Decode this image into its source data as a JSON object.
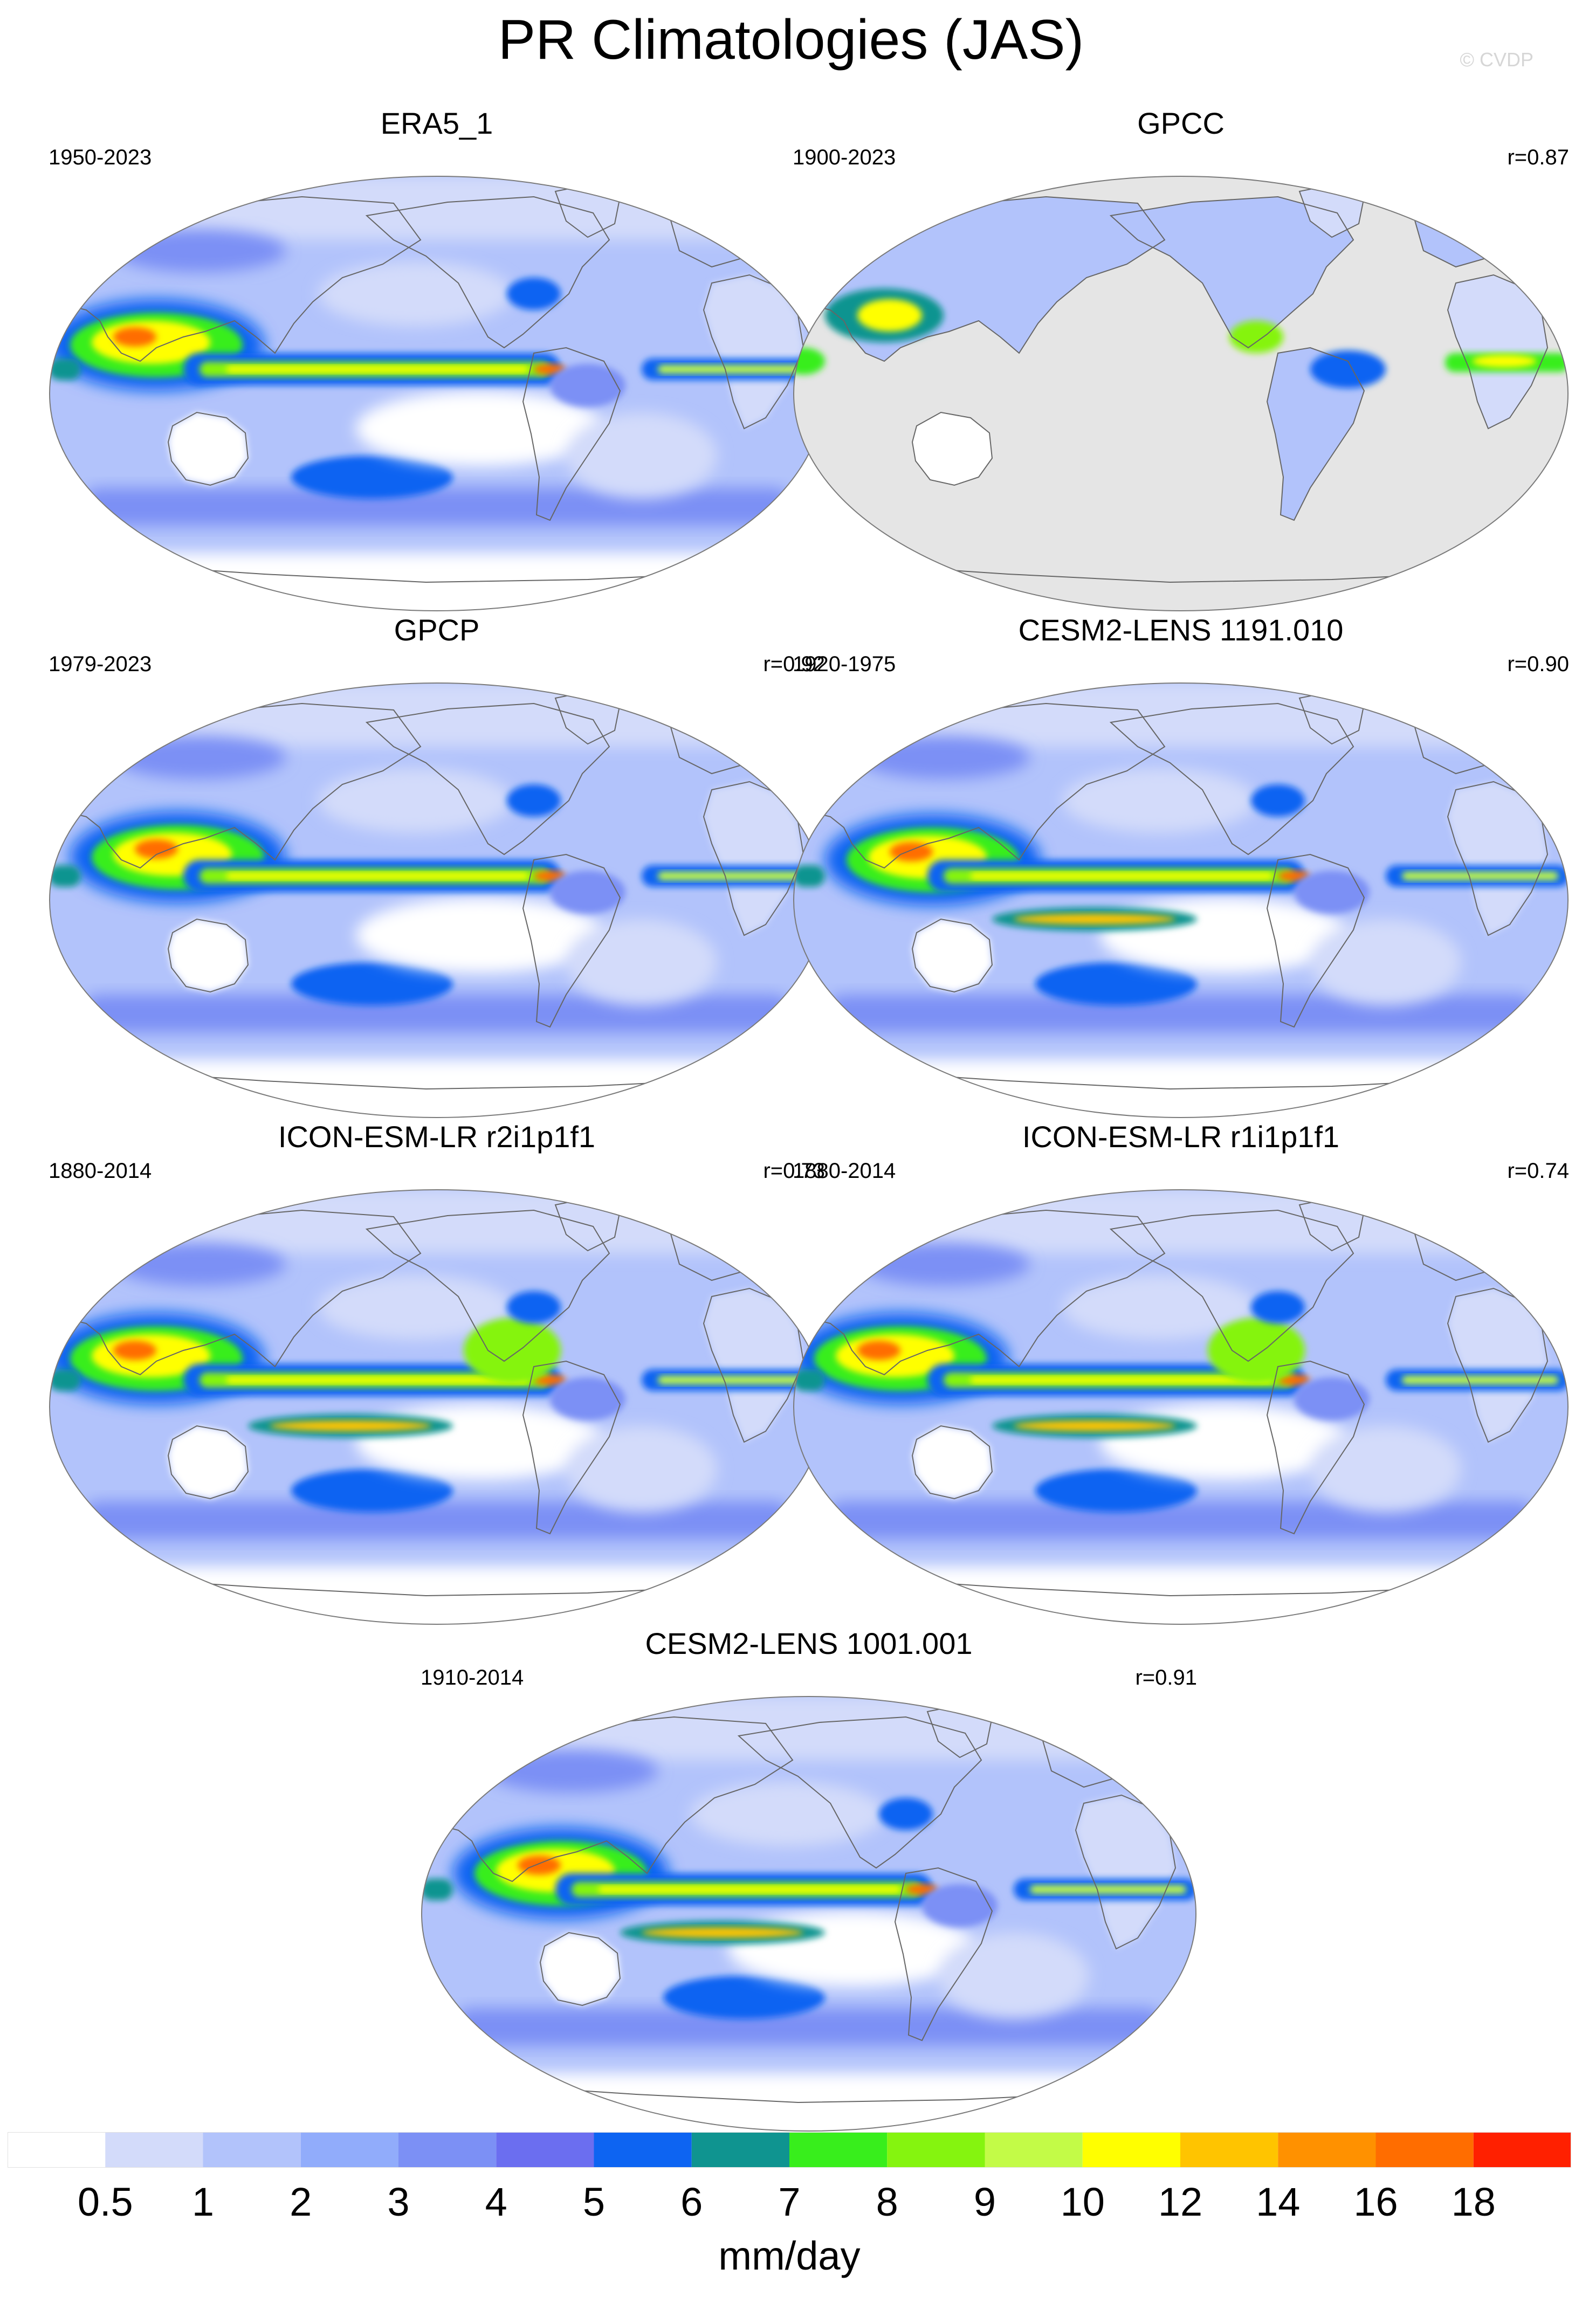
{
  "title": "PR Climatologies (JAS)",
  "credit": "© CVDP",
  "panels": [
    {
      "name": "ERA5_1",
      "years": "1950-2023",
      "r": "",
      "field": "era"
    },
    {
      "name": "GPCC",
      "years": "1900-2023",
      "r": "r=0.87",
      "field": "gpcc"
    },
    {
      "name": "GPCP",
      "years": "1979-2023",
      "r": "r=0.92",
      "field": "gpcp"
    },
    {
      "name": "CESM2-LENS 1191.010",
      "years": "1920-1975",
      "r": "r=0.90",
      "field": "cesm"
    },
    {
      "name": "ICON-ESM-LR r2i1p1f1",
      "years": "1880-2014",
      "r": "r=0.73",
      "field": "icon"
    },
    {
      "name": "ICON-ESM-LR r1i1p1f1",
      "years": "1880-2014",
      "r": "r=0.74",
      "field": "icon"
    },
    {
      "name": "CESM2-LENS 1001.001",
      "years": "1910-2014",
      "r": "r=0.91",
      "field": "cesm"
    }
  ],
  "colorbar": {
    "labels": [
      "0.5",
      "1",
      "2",
      "3",
      "4",
      "5",
      "6",
      "7",
      "8",
      "9",
      "10",
      "12",
      "14",
      "16",
      "18"
    ],
    "colors": [
      "#ffffff",
      "#d3dbfa",
      "#b2c3fb",
      "#91acfb",
      "#7c90f5",
      "#6b6ef0",
      "#0d64f2",
      "#0f9490",
      "#38ee1c",
      "#85f40f",
      "#c3fb47",
      "#ffff00",
      "#ffc400",
      "#ff9100",
      "#ff6d00",
      "#ff2000"
    ],
    "units": "mm/day"
  },
  "land_mask_color": "#e5e5e5"
}
